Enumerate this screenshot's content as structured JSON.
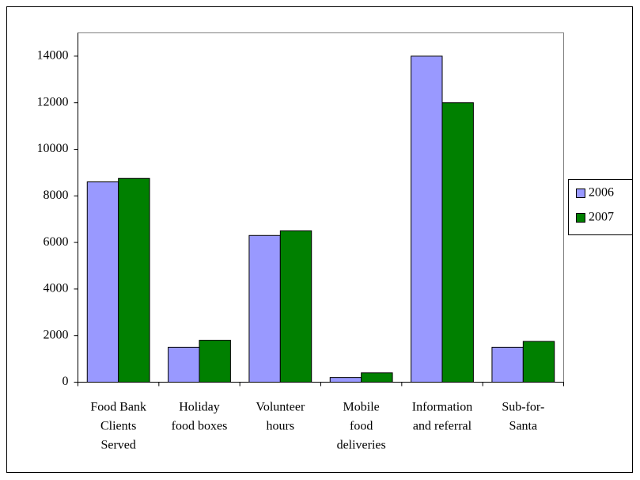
{
  "chart_data": {
    "type": "bar",
    "categories": [
      "Food Bank\nClients\nServed",
      "Holiday\nfood boxes",
      "Volunteer\nhours",
      "Mobile\nfood\ndeliveries",
      "Information\nand referral",
      "Sub-for-\nSanta"
    ],
    "series": [
      {
        "name": "2006",
        "color": "#9999ff",
        "values": [
          8600,
          1500,
          6300,
          200,
          14000,
          1500
        ]
      },
      {
        "name": "2007",
        "color": "#008000",
        "values": [
          8750,
          1800,
          6500,
          400,
          12000,
          1750
        ]
      }
    ],
    "ylim": [
      0,
      15000
    ],
    "yticks": [
      0,
      2000,
      4000,
      6000,
      8000,
      10000,
      12000,
      14000
    ],
    "legend": "right"
  }
}
